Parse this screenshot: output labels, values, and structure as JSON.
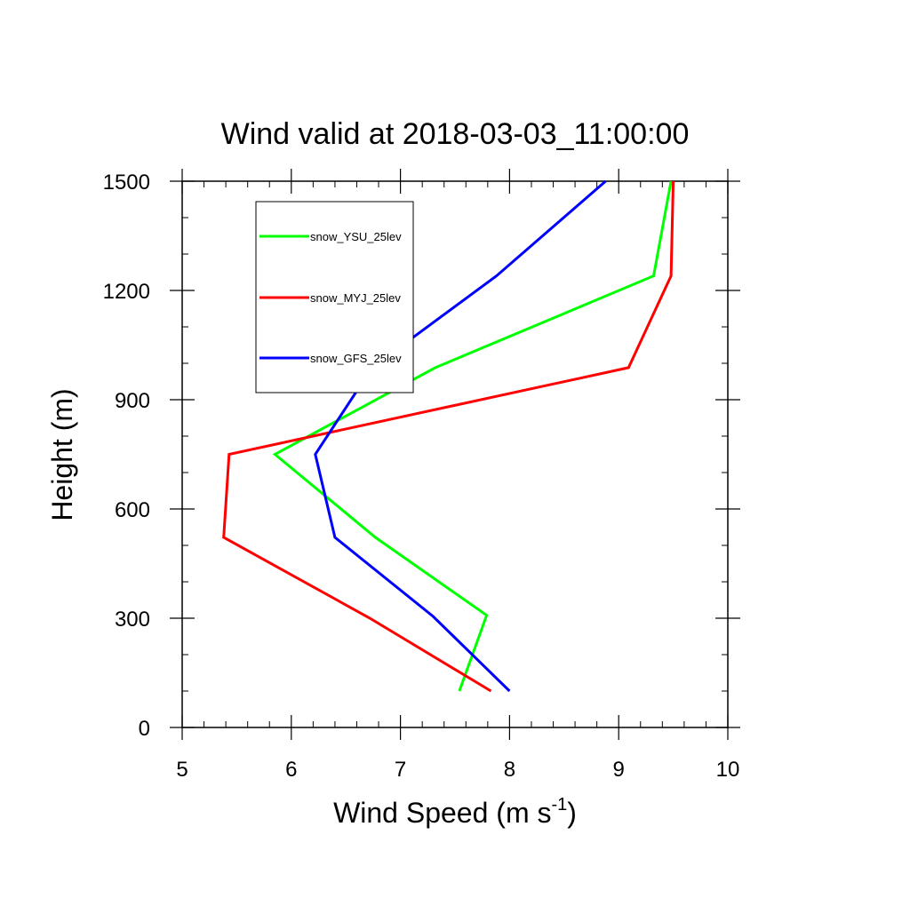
{
  "chart_data": {
    "type": "line",
    "title": "Wind valid at 2018-03-03_11:00:00",
    "xlabel_base": "Wind Speed (m s",
    "xlabel_sup": "-1",
    "xlabel_close": ")",
    "ylabel": "Height (m)",
    "xlim": [
      5,
      10
    ],
    "ylim": [
      0,
      1500
    ],
    "x_ticks": [
      5,
      6,
      7,
      8,
      9,
      10
    ],
    "y_ticks": [
      0,
      300,
      600,
      900,
      1200,
      1500
    ],
    "x_tick_labels": [
      "5",
      "6",
      "7",
      "8",
      "9",
      "10"
    ],
    "y_tick_labels": [
      "0",
      "300",
      "600",
      "900",
      "1200",
      "1500"
    ],
    "x_minor_step": 0.2,
    "y_minor_step": 100,
    "grid": false,
    "legend_placement": "upper-left",
    "series": [
      {
        "name": "snow_YSU_25lev",
        "color": "#00ff00",
        "points": [
          [
            7.54,
            100
          ],
          [
            7.79,
            308
          ],
          [
            6.77,
            522
          ],
          [
            5.85,
            750
          ],
          [
            7.32,
            988
          ],
          [
            9.32,
            1240
          ],
          [
            9.48,
            1500
          ]
        ]
      },
      {
        "name": "snow_MYJ_25lev",
        "color": "#ff0000",
        "points": [
          [
            7.83,
            100
          ],
          [
            6.72,
            300
          ],
          [
            5.38,
            522
          ],
          [
            5.43,
            750
          ],
          [
            9.09,
            988
          ],
          [
            9.48,
            1240
          ],
          [
            9.5,
            1500
          ]
        ]
      },
      {
        "name": "snow_GFS_25lev",
        "color": "#0000ff",
        "points": [
          [
            8.0,
            100
          ],
          [
            7.3,
            305
          ],
          [
            6.4,
            522
          ],
          [
            6.22,
            750
          ],
          [
            6.74,
            988
          ],
          [
            7.88,
            1240
          ],
          [
            8.88,
            1500
          ]
        ]
      }
    ]
  }
}
